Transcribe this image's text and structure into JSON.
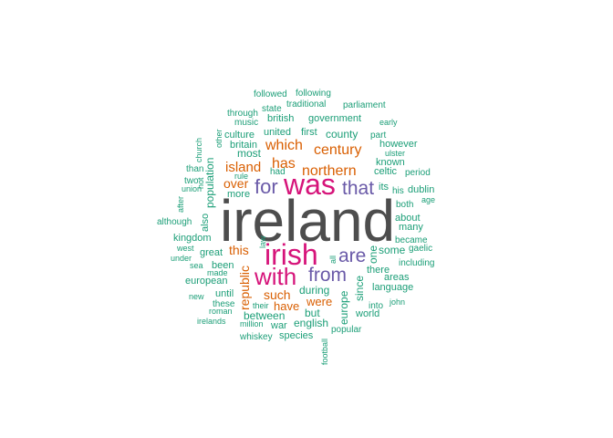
{
  "palette": {
    "gray": "#4d4d4d",
    "magenta": "#d6147a",
    "purple": "#6a5aa8",
    "orange": "#d95f02",
    "green": "#1b9e77"
  },
  "words": [
    {
      "text": "ireland",
      "color": "gray"
    },
    {
      "text": "irish",
      "color": "magenta"
    },
    {
      "text": "was",
      "color": "magenta"
    },
    {
      "text": "with",
      "color": "magenta"
    },
    {
      "text": "for",
      "color": "purple"
    },
    {
      "text": "that",
      "color": "purple"
    },
    {
      "text": "from",
      "color": "purple"
    },
    {
      "text": "are",
      "color": "purple"
    },
    {
      "text": "northern",
      "color": "orange"
    },
    {
      "text": "century",
      "color": "orange"
    },
    {
      "text": "which",
      "color": "orange"
    },
    {
      "text": "has",
      "color": "orange"
    },
    {
      "text": "island",
      "color": "orange"
    },
    {
      "text": "over",
      "color": "orange"
    },
    {
      "text": "this",
      "color": "orange"
    },
    {
      "text": "republic",
      "color": "orange"
    },
    {
      "text": "such",
      "color": "orange"
    },
    {
      "text": "have",
      "color": "orange"
    },
    {
      "text": "were",
      "color": "orange"
    },
    {
      "text": "followed",
      "color": "green"
    },
    {
      "text": "following",
      "color": "green"
    },
    {
      "text": "state",
      "color": "green"
    },
    {
      "text": "traditional",
      "color": "green"
    },
    {
      "text": "parliament",
      "color": "green"
    },
    {
      "text": "through",
      "color": "green"
    },
    {
      "text": "british",
      "color": "green"
    },
    {
      "text": "government",
      "color": "green"
    },
    {
      "text": "early",
      "color": "green"
    },
    {
      "text": "music",
      "color": "green"
    },
    {
      "text": "other",
      "color": "green"
    },
    {
      "text": "church",
      "color": "green"
    },
    {
      "text": "culture",
      "color": "green"
    },
    {
      "text": "united",
      "color": "green"
    },
    {
      "text": "first",
      "color": "green"
    },
    {
      "text": "county",
      "color": "green"
    },
    {
      "text": "part",
      "color": "green"
    },
    {
      "text": "britain",
      "color": "green"
    },
    {
      "text": "however",
      "color": "green"
    },
    {
      "text": "most",
      "color": "green"
    },
    {
      "text": "ulster",
      "color": "green"
    },
    {
      "text": "known",
      "color": "green"
    },
    {
      "text": "than",
      "color": "green"
    },
    {
      "text": "population",
      "color": "green"
    },
    {
      "text": "rule",
      "color": "green"
    },
    {
      "text": "had",
      "color": "green"
    },
    {
      "text": "celtic",
      "color": "green"
    },
    {
      "text": "period",
      "color": "green"
    },
    {
      "text": "two",
      "color": "green"
    },
    {
      "text": "union",
      "color": "green"
    },
    {
      "text": "not",
      "color": "green"
    },
    {
      "text": "its",
      "color": "green"
    },
    {
      "text": "his",
      "color": "green"
    },
    {
      "text": "dublin",
      "color": "green"
    },
    {
      "text": "more",
      "color": "green"
    },
    {
      "text": "after",
      "color": "green"
    },
    {
      "text": "both",
      "color": "green"
    },
    {
      "text": "age",
      "color": "green"
    },
    {
      "text": "also",
      "color": "green"
    },
    {
      "text": "about",
      "color": "green"
    },
    {
      "text": "although",
      "color": "green"
    },
    {
      "text": "many",
      "color": "green"
    },
    {
      "text": "kingdom",
      "color": "green"
    },
    {
      "text": "became",
      "color": "green"
    },
    {
      "text": "law",
      "color": "green"
    },
    {
      "text": "west",
      "color": "green"
    },
    {
      "text": "one",
      "color": "green"
    },
    {
      "text": "some",
      "color": "green"
    },
    {
      "text": "gaelic",
      "color": "green"
    },
    {
      "text": "great",
      "color": "green"
    },
    {
      "text": "under",
      "color": "green"
    },
    {
      "text": "all",
      "color": "green"
    },
    {
      "text": "including",
      "color": "green"
    },
    {
      "text": "sea",
      "color": "green"
    },
    {
      "text": "been",
      "color": "green"
    },
    {
      "text": "there",
      "color": "green"
    },
    {
      "text": "made",
      "color": "green"
    },
    {
      "text": "areas",
      "color": "green"
    },
    {
      "text": "european",
      "color": "green"
    },
    {
      "text": "since",
      "color": "green"
    },
    {
      "text": "language",
      "color": "green"
    },
    {
      "text": "until",
      "color": "green"
    },
    {
      "text": "during",
      "color": "green"
    },
    {
      "text": "new",
      "color": "green"
    },
    {
      "text": "their",
      "color": "green"
    },
    {
      "text": "these",
      "color": "green"
    },
    {
      "text": "europe",
      "color": "green"
    },
    {
      "text": "john",
      "color": "green"
    },
    {
      "text": "roman",
      "color": "green"
    },
    {
      "text": "into",
      "color": "green"
    },
    {
      "text": "between",
      "color": "green"
    },
    {
      "text": "but",
      "color": "green"
    },
    {
      "text": "world",
      "color": "green"
    },
    {
      "text": "irelands",
      "color": "green"
    },
    {
      "text": "million",
      "color": "green"
    },
    {
      "text": "war",
      "color": "green"
    },
    {
      "text": "english",
      "color": "green"
    },
    {
      "text": "popular",
      "color": "green"
    },
    {
      "text": "whiskey",
      "color": "green"
    },
    {
      "text": "species",
      "color": "green"
    },
    {
      "text": "football",
      "color": "green"
    }
  ]
}
